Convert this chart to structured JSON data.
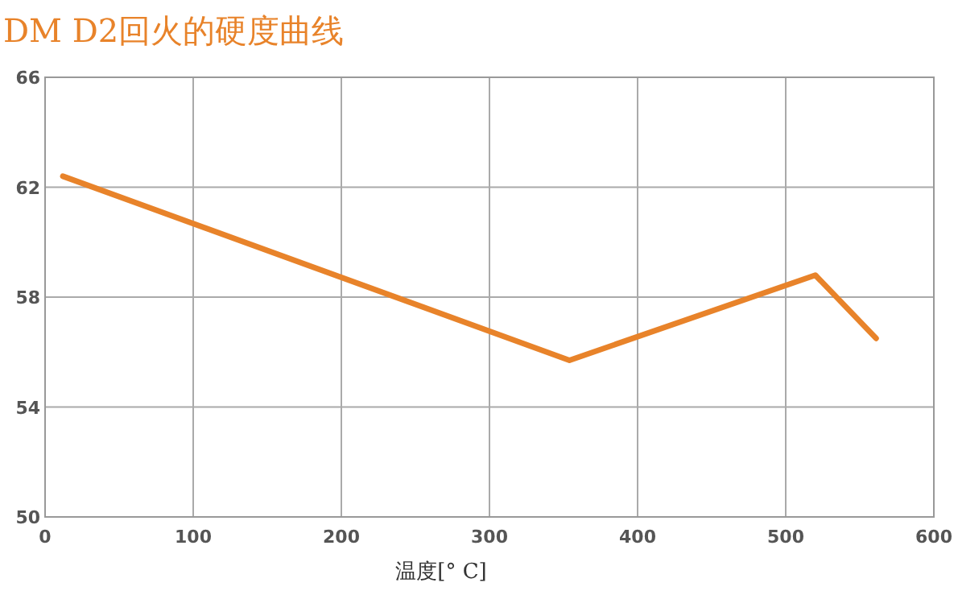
{
  "chart_data": {
    "type": "line",
    "title": "DM D2回火的硬度曲线",
    "xlabel": "温度[° C]",
    "x": [
      12,
      354,
      520,
      561
    ],
    "series": [
      {
        "color": "#e8832a",
        "values": [
          62.4,
          55.7,
          58.8,
          56.5
        ]
      }
    ],
    "xlim": [
      0,
      600
    ],
    "xticks": [
      0,
      100,
      200,
      300,
      400,
      500,
      600
    ],
    "ylim": [
      50,
      66
    ],
    "yticks": [
      50,
      54,
      58,
      62,
      66
    ],
    "grid": true,
    "marker": "none",
    "line_style": "solid"
  }
}
